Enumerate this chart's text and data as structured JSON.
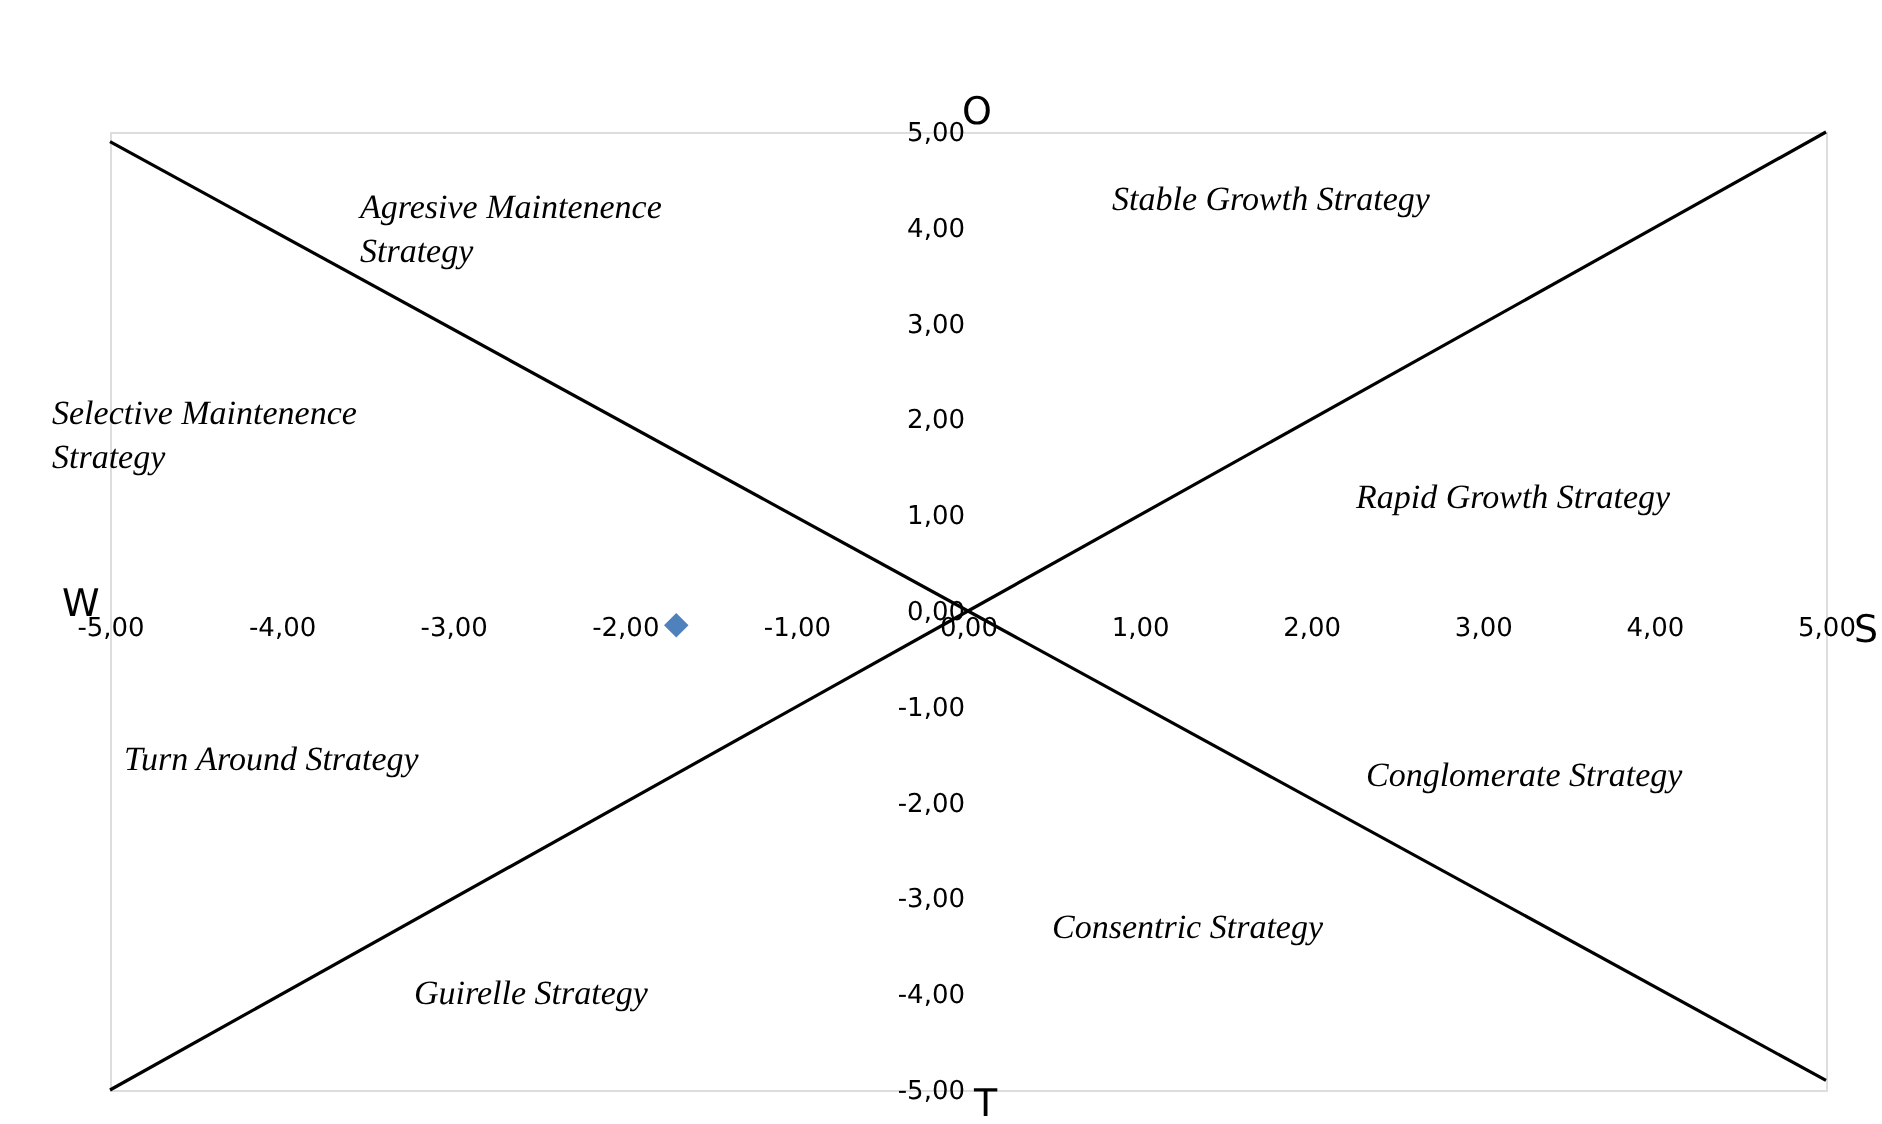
{
  "chart_data": {
    "type": "scatter",
    "xlim": [
      -5,
      5
    ],
    "ylim": [
      -5,
      5
    ],
    "xticks": [
      {
        "value": -5,
        "label": "-5,00"
      },
      {
        "value": -4,
        "label": "-4,00"
      },
      {
        "value": -3,
        "label": "-3,00"
      },
      {
        "value": -2,
        "label": "-2,00"
      },
      {
        "value": -1,
        "label": "-1,00"
      },
      {
        "value": 0,
        "label": "0,00"
      },
      {
        "value": 1,
        "label": "1,00"
      },
      {
        "value": 2,
        "label": "2,00"
      },
      {
        "value": 3,
        "label": "3,00"
      },
      {
        "value": 4,
        "label": "4,00"
      },
      {
        "value": 5,
        "label": "5,00"
      }
    ],
    "yticks": [
      {
        "value": -5,
        "label": "-5,00"
      },
      {
        "value": -4,
        "label": "-4,00"
      },
      {
        "value": -3,
        "label": "-3,00"
      },
      {
        "value": -2,
        "label": "-2,00"
      },
      {
        "value": -1,
        "label": "-1,00"
      },
      {
        "value": 0,
        "label": "0,00"
      },
      {
        "value": 1,
        "label": "1,00"
      },
      {
        "value": 2,
        "label": "2,00"
      },
      {
        "value": 3,
        "label": "3,00"
      },
      {
        "value": 4,
        "label": "4,00"
      },
      {
        "value": 5,
        "label": "5,00"
      }
    ],
    "grid": false,
    "series": [
      {
        "type": "line",
        "color": "#000000",
        "x": [
          -5,
          0,
          5
        ],
        "values": [
          4.9,
          0,
          -4.9
        ]
      },
      {
        "type": "line",
        "color": "#000000",
        "x": [
          -5,
          0,
          5
        ],
        "values": [
          -5,
          0,
          5
        ]
      },
      {
        "type": "scatter",
        "color": "#4f81bd",
        "x": [
          -1.7
        ],
        "values": [
          -0.15
        ],
        "marker": "diamond"
      }
    ],
    "annotations": [
      "Agresive Maintenence Strategy",
      "Stable Growth Strategy",
      "Selective Maintenence Strategy",
      "Rapid Growth Strategy",
      "Turn Around Strategy",
      "Conglomerate Strategy",
      "Consentric Strategy",
      "Guirelle Strategy",
      "W",
      "O",
      "S",
      "T"
    ]
  }
}
